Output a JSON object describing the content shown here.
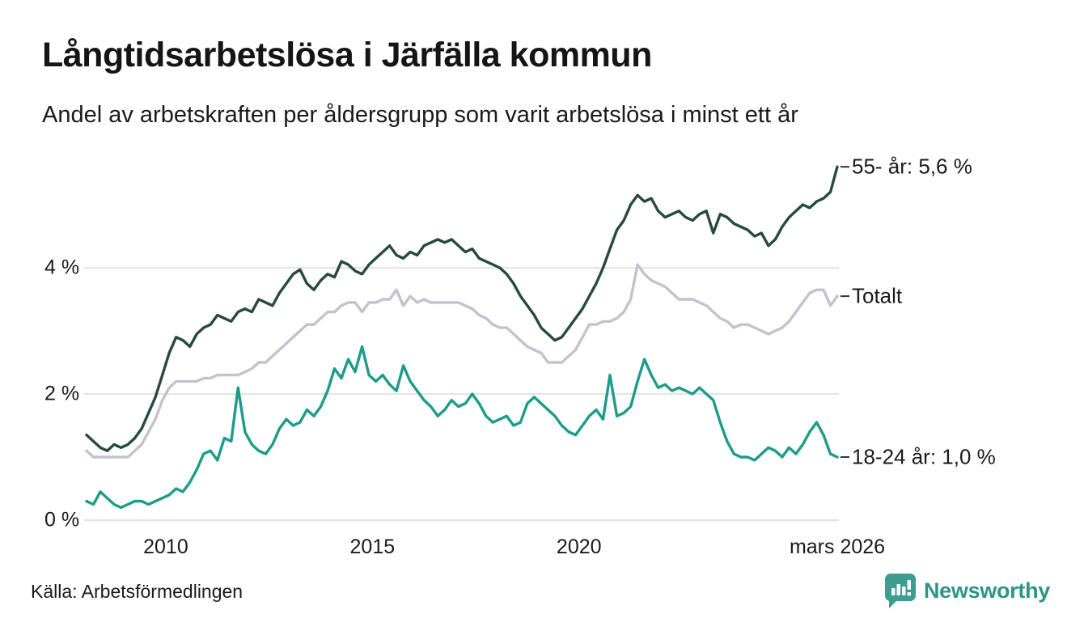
{
  "header": {
    "title": "Långtidsarbetslösa i Järfälla kommun",
    "subtitle": "Andel av arbetskraften per åldersgrupp som varit arbetslösa i minst ett år"
  },
  "footer": {
    "source": "Källa: Arbetsförmedlingen",
    "logo_text": "Newsworthy"
  },
  "colors": {
    "series_55": "#274a40",
    "series_totalt": "#c3c2cf",
    "series_18_24": "#1d9c8b",
    "gridline": "#e4e4e4",
    "axis_text": "#1a1a1a",
    "label_dash": "#333333",
    "logo_teal": "#3b9e90"
  },
  "chart_data": {
    "type": "line",
    "title": "Långtidsarbetslösa i Järfälla kommun",
    "xlabel": "",
    "ylabel": "",
    "x_start": 2008.083,
    "x_end": 2026.25,
    "x_step_months": 2,
    "ylim": [
      0,
      6
    ],
    "grid": "horizontal",
    "legend_position": "right-end-labels",
    "x_ticks": [
      {
        "label": "2010",
        "year": 2010
      },
      {
        "label": "2015",
        "year": 2015
      },
      {
        "label": "2020",
        "year": 2020
      },
      {
        "label": "mars 2026",
        "year": 2026.25
      }
    ],
    "y_ticks": [
      {
        "label": "0 %",
        "value": 0
      },
      {
        "label": "2 %",
        "value": 2
      },
      {
        "label": "4 %",
        "value": 4
      }
    ],
    "series": [
      {
        "id": "55-ar",
        "name": "55- år",
        "end_label": "55- år: 5,6 %",
        "end_value": 5.6,
        "color": "#274a40",
        "values": [
          1.35,
          1.25,
          1.15,
          1.1,
          1.2,
          1.15,
          1.2,
          1.3,
          1.45,
          1.7,
          1.95,
          2.3,
          2.65,
          2.9,
          2.85,
          2.75,
          2.95,
          3.05,
          3.1,
          3.25,
          3.2,
          3.15,
          3.3,
          3.35,
          3.3,
          3.5,
          3.45,
          3.4,
          3.6,
          3.75,
          3.9,
          3.97,
          3.75,
          3.65,
          3.8,
          3.9,
          3.85,
          4.1,
          4.05,
          3.95,
          3.9,
          4.05,
          4.15,
          4.25,
          4.35,
          4.2,
          4.15,
          4.25,
          4.2,
          4.35,
          4.4,
          4.45,
          4.4,
          4.45,
          4.35,
          4.25,
          4.3,
          4.15,
          4.1,
          4.05,
          4.0,
          3.9,
          3.75,
          3.55,
          3.4,
          3.25,
          3.05,
          2.95,
          2.85,
          2.9,
          3.05,
          3.2,
          3.35,
          3.55,
          3.75,
          4.0,
          4.3,
          4.6,
          4.75,
          5.0,
          5.15,
          5.05,
          5.1,
          4.9,
          4.8,
          4.85,
          4.9,
          4.8,
          4.75,
          4.85,
          4.9,
          4.55,
          4.85,
          4.8,
          4.7,
          4.65,
          4.6,
          4.5,
          4.55,
          4.35,
          4.45,
          4.65,
          4.8,
          4.9,
          5.0,
          4.95,
          5.05,
          5.1,
          5.2,
          5.6
        ]
      },
      {
        "id": "totalt",
        "name": "Totalt",
        "end_label": "Totalt",
        "end_value": 3.55,
        "color": "#c3c2cf",
        "values": [
          1.1,
          1.0,
          1.0,
          1.0,
          1.0,
          1.0,
          1.0,
          1.1,
          1.2,
          1.4,
          1.6,
          1.9,
          2.1,
          2.2,
          2.2,
          2.2,
          2.2,
          2.25,
          2.25,
          2.3,
          2.3,
          2.3,
          2.3,
          2.35,
          2.4,
          2.5,
          2.5,
          2.6,
          2.7,
          2.8,
          2.9,
          3.0,
          3.1,
          3.1,
          3.2,
          3.3,
          3.3,
          3.4,
          3.45,
          3.45,
          3.3,
          3.45,
          3.45,
          3.5,
          3.5,
          3.65,
          3.4,
          3.55,
          3.45,
          3.5,
          3.45,
          3.45,
          3.45,
          3.45,
          3.45,
          3.4,
          3.35,
          3.25,
          3.2,
          3.1,
          3.05,
          3.05,
          2.95,
          2.85,
          2.75,
          2.7,
          2.65,
          2.5,
          2.5,
          2.5,
          2.6,
          2.7,
          2.9,
          3.1,
          3.1,
          3.15,
          3.15,
          3.2,
          3.3,
          3.5,
          4.05,
          3.9,
          3.8,
          3.75,
          3.7,
          3.6,
          3.5,
          3.5,
          3.5,
          3.45,
          3.4,
          3.3,
          3.2,
          3.15,
          3.05,
          3.1,
          3.1,
          3.05,
          3.0,
          2.95,
          3.0,
          3.05,
          3.15,
          3.3,
          3.45,
          3.6,
          3.65,
          3.65,
          3.4,
          3.55
        ]
      },
      {
        "id": "18-24-ar",
        "name": "18-24 år",
        "end_label": "18-24 år: 1,0 %",
        "end_value": 1.0,
        "color": "#1d9c8b",
        "values": [
          0.3,
          0.25,
          0.45,
          0.35,
          0.25,
          0.2,
          0.25,
          0.3,
          0.3,
          0.25,
          0.3,
          0.35,
          0.4,
          0.5,
          0.45,
          0.6,
          0.8,
          1.05,
          1.1,
          0.95,
          1.3,
          1.25,
          2.1,
          1.4,
          1.2,
          1.1,
          1.05,
          1.2,
          1.45,
          1.6,
          1.5,
          1.55,
          1.75,
          1.65,
          1.8,
          2.05,
          2.4,
          2.25,
          2.55,
          2.35,
          2.75,
          2.3,
          2.2,
          2.3,
          2.15,
          2.05,
          2.45,
          2.2,
          2.05,
          1.9,
          1.8,
          1.65,
          1.75,
          1.9,
          1.8,
          1.85,
          2.0,
          1.85,
          1.65,
          1.55,
          1.6,
          1.65,
          1.5,
          1.55,
          1.85,
          1.95,
          1.85,
          1.75,
          1.65,
          1.5,
          1.4,
          1.35,
          1.5,
          1.65,
          1.75,
          1.6,
          2.3,
          1.65,
          1.7,
          1.8,
          2.2,
          2.55,
          2.3,
          2.1,
          2.15,
          2.05,
          2.1,
          2.05,
          2.0,
          2.1,
          2.0,
          1.9,
          1.55,
          1.25,
          1.05,
          1.0,
          1.0,
          0.95,
          1.05,
          1.15,
          1.1,
          1.0,
          1.15,
          1.05,
          1.2,
          1.4,
          1.55,
          1.35,
          1.05,
          1.0
        ]
      }
    ]
  }
}
